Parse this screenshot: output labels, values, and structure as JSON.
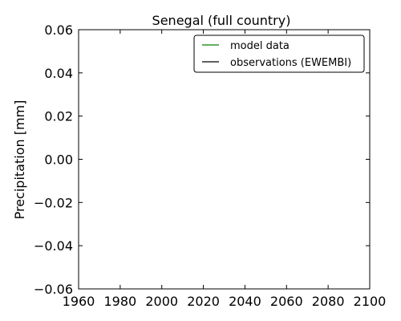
{
  "chart_data": {
    "type": "line",
    "title": "Senegal (full country)",
    "xlabel": "",
    "ylabel": "Precipitation [mm]",
    "xlim": [
      1960,
      2100
    ],
    "ylim": [
      -0.06,
      0.06
    ],
    "xticks": [
      1960,
      1980,
      2000,
      2020,
      2040,
      2060,
      2080,
      2100
    ],
    "yticks": [
      -0.06,
      -0.04,
      -0.02,
      0.0,
      0.02,
      0.04,
      0.06
    ],
    "xtick_labels": [
      "1960",
      "1980",
      "2000",
      "2020",
      "2040",
      "2060",
      "2080",
      "2100"
    ],
    "ytick_labels": [
      "−0.06",
      "−0.04",
      "−0.02",
      "0.00",
      "0.02",
      "0.04",
      "0.06"
    ],
    "grid": false,
    "legend_position": "top-right",
    "series": [
      {
        "name": "model data",
        "color": "#008000",
        "x": [],
        "y": []
      },
      {
        "name": "observations (EWEMBI)",
        "color": "#000000",
        "x": [],
        "y": []
      }
    ]
  }
}
